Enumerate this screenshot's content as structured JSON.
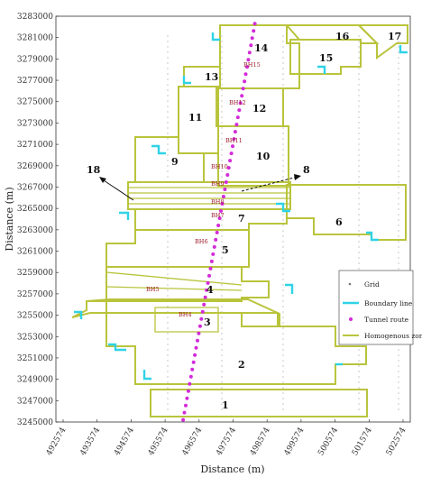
{
  "chart_data": {
    "type": "diagram",
    "xlabel": "Distance (m)",
    "ylabel": "Distance (m)",
    "x_ticks": [
      "492574",
      "493574",
      "494574",
      "495574",
      "496574",
      "497574",
      "498574",
      "499574",
      "500574",
      "501574",
      "502574"
    ],
    "y_ticks": [
      "3283000",
      "3281000",
      "3279000",
      "3277000",
      "3275000",
      "3273000",
      "3271000",
      "3269000",
      "3267000",
      "3265000",
      "3263000",
      "3261000",
      "3259000",
      "3257000",
      "3255000",
      "3253000",
      "3251000",
      "3249000",
      "3247000",
      "3245000"
    ],
    "zones": [
      "1",
      "2",
      "3",
      "4",
      "5",
      "6",
      "7",
      "8",
      "9",
      "10",
      "11",
      "12",
      "13",
      "14",
      "15",
      "16",
      "17",
      "18"
    ],
    "boreholes": [
      "BH15",
      "BH12",
      "BH11",
      "BH10",
      "BH9",
      "BH8",
      "BH7",
      "BH6",
      "BH5",
      "BH4"
    ],
    "legend": [
      {
        "label": "Grid",
        "color": "#777777"
      },
      {
        "label": "Boundary line",
        "color": "#2fd3e6"
      },
      {
        "label": "Tunnel route",
        "color": "#d22bd8"
      },
      {
        "label": "Homogenous zone",
        "color": "#b9c43c"
      }
    ],
    "tunnel_route": {
      "start": [
        496104,
        3245200
      ],
      "end": [
        498214,
        3282300
      ],
      "points": 56
    }
  }
}
